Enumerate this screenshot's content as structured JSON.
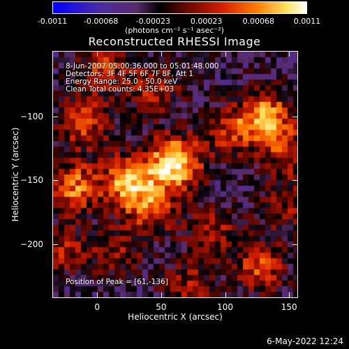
{
  "colorbar": {
    "ticks": [
      "-0.0011",
      "-0.00068",
      "-0.00023",
      "0.00023",
      "0.00068",
      "0.0011"
    ],
    "tick_values": [
      -0.0011,
      -0.00068,
      -0.00023,
      0.00023,
      0.00068,
      0.0011
    ],
    "range": [
      -0.0011,
      0.0011
    ],
    "units": "(photons cm⁻² s⁻¹ asec⁻²)"
  },
  "title": "Reconstructed RHESSI Image",
  "info_lines": [
    "8-Jun-2007 05:00:36.000 to 05:01:48.000",
    "Detectors: 3F 4F 5F 6F 7F 8F, Att 1",
    "Energy Range: 25.0 - 50.0 keV",
    "Clean    Total counts: 4.35E+03"
  ],
  "peak_label": "Position of Peak = [61,-136]",
  "xlabel": "Heliocentric X (arcsec)",
  "ylabel": "Heliocentric Y (arcsec)",
  "datestamp": "6-May-2022 12:24",
  "chart_data": {
    "type": "heatmap",
    "title": "Reconstructed RHESSI Image",
    "xlabel": "Heliocentric X (arcsec)",
    "ylabel": "Heliocentric Y (arcsec)",
    "xlim": [
      -35,
      157
    ],
    "ylim": [
      -242,
      -49
    ],
    "xticks": [
      0,
      50,
      100,
      150
    ],
    "yticks": [
      -100,
      -150,
      -200
    ],
    "colormap": [
      "#0000ff",
      "#4b2aa8",
      "#5a2b6a",
      "#000000",
      "#7a0a00",
      "#d62000",
      "#ff7a00",
      "#ffe060",
      "#ffffff"
    ],
    "peak": [
      61,
      -136
    ],
    "sources": [
      {
        "x": 61,
        "y": -136,
        "amp": 0.0011
      },
      {
        "x": 25,
        "y": -150,
        "amp": 0.00085
      },
      {
        "x": -18,
        "y": -155,
        "amp": 0.0007
      },
      {
        "x": 42,
        "y": -172,
        "amp": 0.0006
      },
      {
        "x": 132,
        "y": -100,
        "amp": 0.0008
      },
      {
        "x": 105,
        "y": -112,
        "amp": 0.0005
      },
      {
        "x": -12,
        "y": -105,
        "amp": 0.0006
      },
      {
        "x": 5,
        "y": -62,
        "amp": 0.0005
      },
      {
        "x": 45,
        "y": -78,
        "amp": 0.00045
      },
      {
        "x": 150,
        "y": -128,
        "amp": 0.0005
      },
      {
        "x": 128,
        "y": -218,
        "amp": 0.00055
      },
      {
        "x": 72,
        "y": -232,
        "amp": 0.0004
      },
      {
        "x": -28,
        "y": -205,
        "amp": 0.0004
      },
      {
        "x": 148,
        "y": -170,
        "amp": 0.00035
      },
      {
        "x": 90,
        "y": -190,
        "amp": 0.0004
      },
      {
        "x": 15,
        "y": -205,
        "amp": 0.00035
      }
    ]
  }
}
